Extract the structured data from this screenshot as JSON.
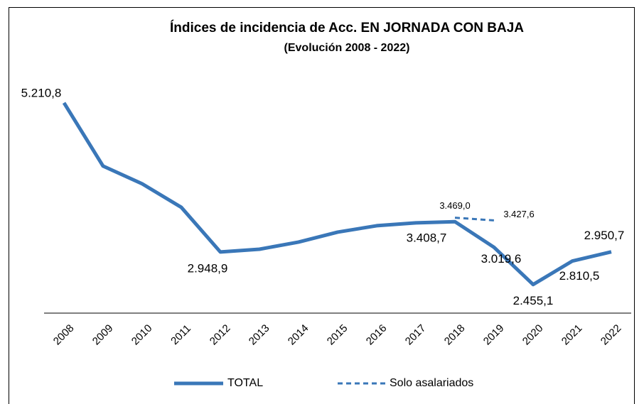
{
  "chart_data": {
    "type": "line",
    "title": "Índices de incidencia de Acc. EN JORNADA CON BAJA",
    "subtitle": "(Evolución 2008 - 2022)",
    "categories": [
      "2008",
      "2009",
      "2010",
      "2011",
      "2012",
      "2013",
      "2014",
      "2015",
      "2016",
      "2017",
      "2018",
      "2019",
      "2020",
      "2021",
      "2022"
    ],
    "ylim": [
      2000,
      5500
    ],
    "series": [
      {
        "name": "TOTAL",
        "color": "#3a77b8",
        "dash": false,
        "values": [
          5210.8,
          4252,
          3983,
          3627,
          2948.9,
          2991,
          3099,
          3250,
          3347,
          3390,
          3408.7,
          3019.6,
          2455.1,
          2810.5,
          2950.7
        ],
        "value_labels": [
          "5.210,8",
          null,
          null,
          null,
          "2.948,9",
          null,
          null,
          null,
          null,
          null,
          "3.408,7",
          "3.019,6",
          "2.455,1",
          "2.810,5",
          "2.950,7"
        ]
      },
      {
        "name": "Solo asalariados",
        "color": "#3a77b8",
        "dash": true,
        "values": [
          null,
          null,
          null,
          null,
          null,
          null,
          null,
          null,
          null,
          null,
          3469.0,
          3427.6,
          null,
          null,
          null
        ],
        "value_labels": [
          null,
          null,
          null,
          null,
          null,
          null,
          null,
          null,
          null,
          null,
          "3.469,0",
          "3.427,6",
          null,
          null,
          null
        ]
      }
    ]
  }
}
